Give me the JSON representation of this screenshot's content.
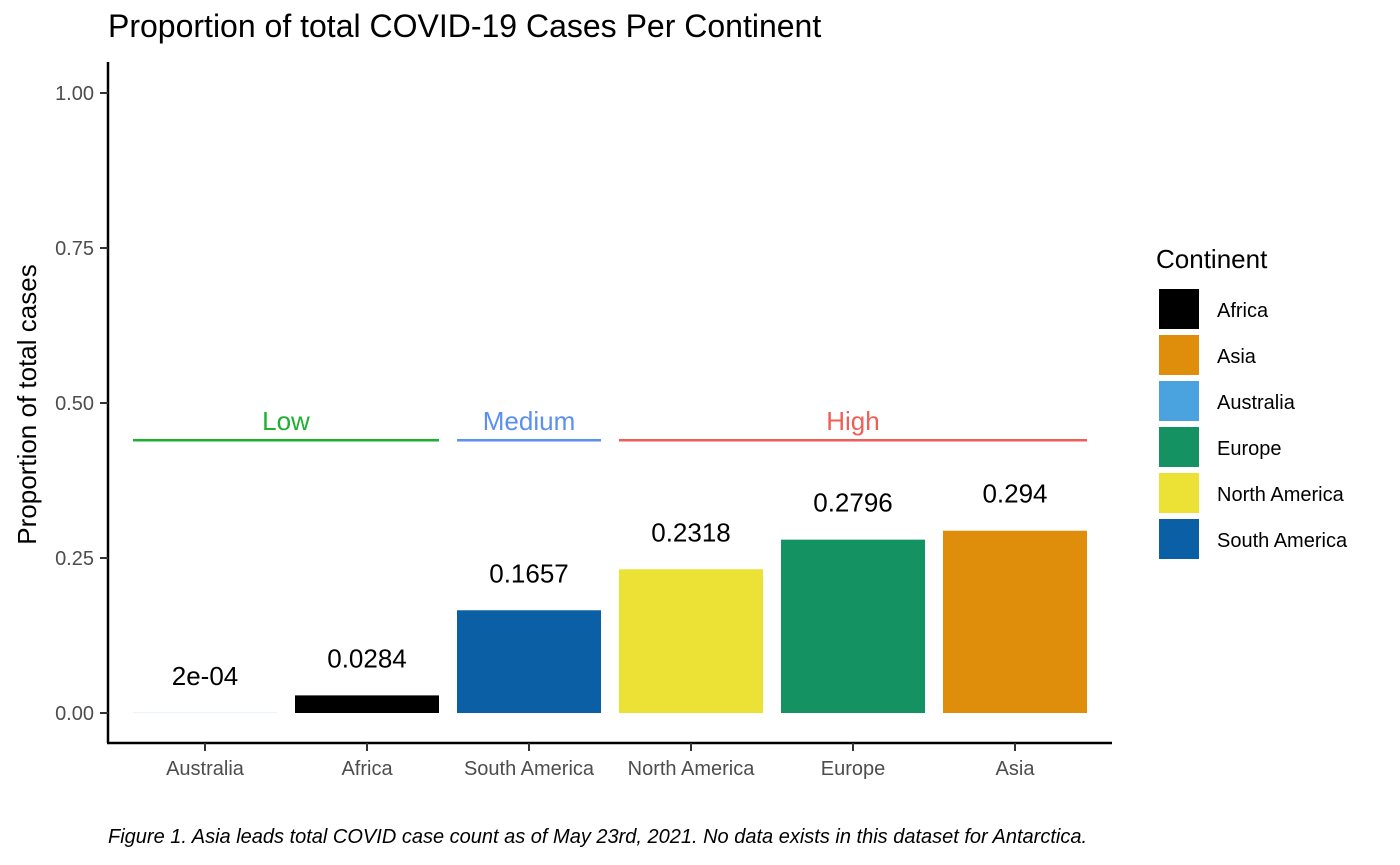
{
  "chart_data": {
    "type": "bar",
    "title": "Proportion of total COVID-19 Cases Per Continent",
    "ylabel": "Proportion of total cases",
    "xlabel": "",
    "ylim": [
      0,
      1.05
    ],
    "y_ticks": [
      "0.00",
      "0.25",
      "0.50",
      "0.75",
      "1.00"
    ],
    "y_tick_values": [
      0,
      0.25,
      0.5,
      0.75,
      1.0
    ],
    "categories": [
      "Australia",
      "Africa",
      "South America",
      "North America",
      "Europe",
      "Asia"
    ],
    "values": [
      0.0002,
      0.0284,
      0.1657,
      0.2318,
      0.2796,
      0.294
    ],
    "data_labels": [
      "2e-04",
      "0.0284",
      "0.1657",
      "0.2318",
      "0.2796",
      "0.294"
    ],
    "bar_colors": [
      "#4AA3DF",
      "#000000",
      "#0B5FA5",
      "#ECE236",
      "#159262",
      "#DF8E0B"
    ],
    "grid": false,
    "legend": {
      "title": "Continent",
      "placement": "right",
      "entries": [
        {
          "label": "Africa",
          "color": "#000000"
        },
        {
          "label": "Asia",
          "color": "#DF8E0B"
        },
        {
          "label": "Australia",
          "color": "#4AA3DF"
        },
        {
          "label": "Europe",
          "color": "#159262"
        },
        {
          "label": "North America",
          "color": "#ECE236"
        },
        {
          "label": "South America",
          "color": "#0B5FA5"
        }
      ]
    },
    "annotations": [
      {
        "label": "Low",
        "from": "Australia",
        "to": "Africa",
        "y": 0.44,
        "color": "#1DB032"
      },
      {
        "label": "Medium",
        "from": "South America",
        "to": "South America",
        "y": 0.44,
        "color": "#5B8FF0"
      },
      {
        "label": "High",
        "from": "North America",
        "to": "Asia",
        "y": 0.44,
        "color": "#EE5F57"
      }
    ],
    "caption": "Figure 1. Asia leads total COVID case count as of May 23rd, 2021. No data exists in this dataset for Antarctica."
  }
}
